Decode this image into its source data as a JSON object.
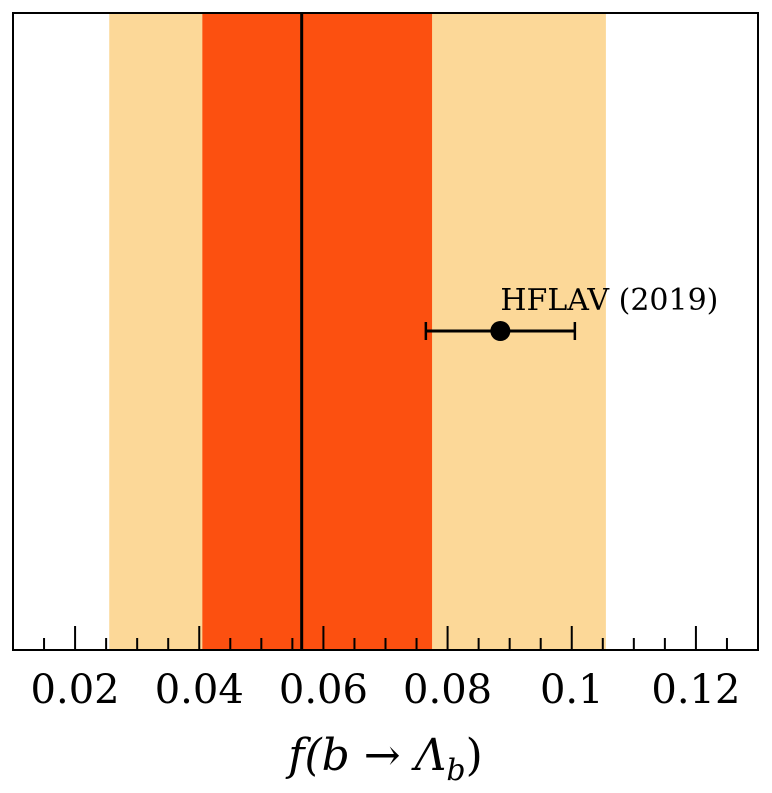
{
  "chart_data": {
    "type": "scatter",
    "title": "",
    "xlabel": "f(b → Λ_b)",
    "ylabel": "",
    "xlim": [
      0.01,
      0.13
    ],
    "x_ticks": [
      0.02,
      0.04,
      0.06,
      0.08,
      0.1,
      0.12
    ],
    "x_tick_labels": [
      "0.02",
      "0.04",
      "0.06",
      "0.08",
      "0.1",
      "0.12"
    ],
    "minor_tick_step": 0.005,
    "grid": false,
    "central_value": 0.0565,
    "inner_band": [
      0.0405,
      0.0775
    ],
    "outer_band": [
      0.0255,
      0.1055
    ],
    "colors": {
      "inner_band": "#fc5010",
      "outer_band": "#fcd898",
      "central_line": "#000000",
      "point": "#000000"
    },
    "points": [
      {
        "label": "HFLAV (2019)",
        "value": 0.0885,
        "err_low": 0.0765,
        "err_high": 0.1005
      }
    ]
  }
}
